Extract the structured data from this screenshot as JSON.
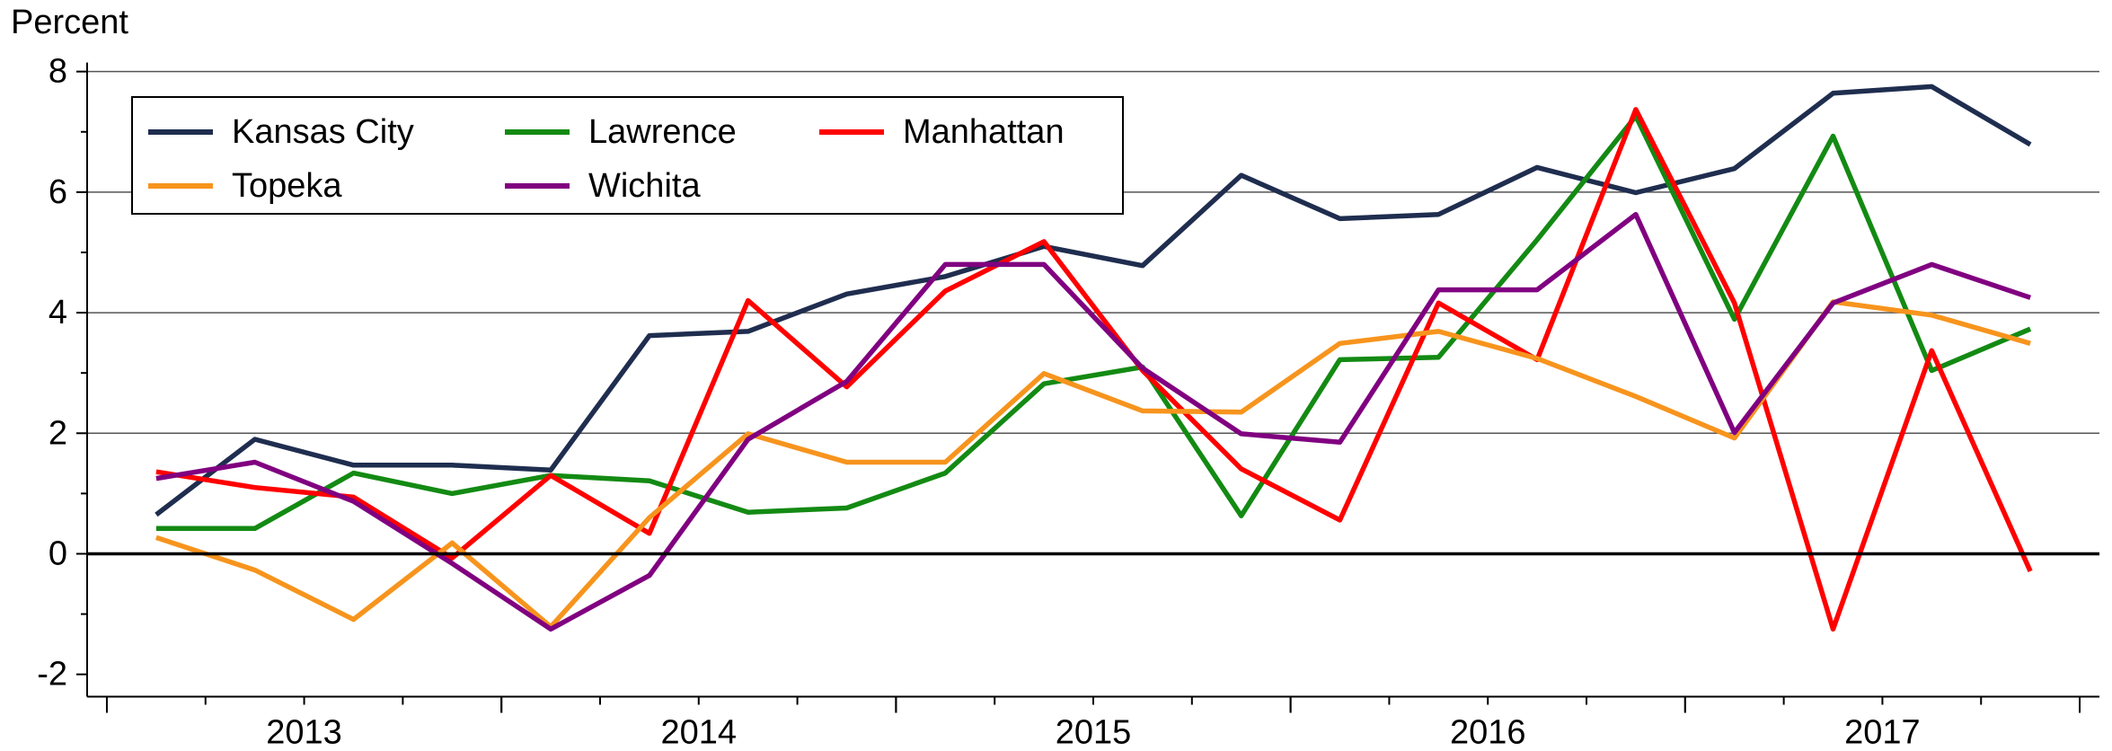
{
  "chart_data": {
    "type": "line",
    "y_label": "Percent",
    "x": [
      2013.125,
      2013.375,
      2013.625,
      2013.875,
      2014.125,
      2014.375,
      2014.625,
      2014.875,
      2015.125,
      2015.375,
      2015.625,
      2015.875,
      2016.125,
      2016.375,
      2016.625,
      2016.875,
      2017.125,
      2017.375,
      2017.625,
      2017.875
    ],
    "xlim": [
      2012.95,
      2018.05
    ],
    "xticks": [
      {
        "value": 2013.5,
        "label": "2013"
      },
      {
        "value": 2014.5,
        "label": "2014"
      },
      {
        "value": 2015.5,
        "label": "2015"
      },
      {
        "value": 2016.5,
        "label": "2016"
      },
      {
        "value": 2017.5,
        "label": "2017"
      }
    ],
    "ylim": [
      -2.37,
      8.15
    ],
    "yticks": [
      -2,
      0,
      2,
      4,
      6,
      8
    ],
    "grid": true,
    "legend": "upper left",
    "series": [
      {
        "name": "Kansas City",
        "color": "#1f2d4f",
        "values": [
          0.65,
          1.9,
          1.47,
          1.47,
          1.39,
          3.62,
          3.69,
          4.31,
          4.6,
          5.1,
          4.78,
          6.28,
          5.56,
          5.63,
          6.41,
          5.99,
          6.39,
          7.64,
          7.75,
          6.79
        ]
      },
      {
        "name": "Lawrence",
        "color": "#138a13",
        "values": [
          0.42,
          0.42,
          1.34,
          1.0,
          1.3,
          1.21,
          0.69,
          0.76,
          1.34,
          2.82,
          3.1,
          0.63,
          3.22,
          3.26,
          5.21,
          7.26,
          3.89,
          6.93,
          3.04,
          3.73
        ]
      },
      {
        "name": "Manhattan",
        "color": "#ff0000",
        "values": [
          1.36,
          1.1,
          0.94,
          -0.07,
          1.3,
          0.34,
          4.2,
          2.77,
          4.36,
          5.18,
          3.04,
          1.41,
          0.56,
          4.16,
          3.22,
          7.37,
          4.16,
          -1.25,
          3.37,
          -0.29
        ]
      },
      {
        "name": "Topeka",
        "color": "#f7941d",
        "values": [
          0.27,
          -0.27,
          -1.09,
          0.18,
          -1.21,
          0.6,
          1.99,
          1.52,
          1.52,
          2.99,
          2.37,
          2.35,
          3.49,
          3.69,
          3.24,
          2.61,
          1.92,
          4.18,
          3.96,
          3.49
        ]
      },
      {
        "name": "Wichita",
        "color": "#800080",
        "values": [
          1.25,
          1.52,
          0.87,
          -0.16,
          -1.25,
          -0.36,
          1.9,
          2.86,
          4.8,
          4.8,
          3.08,
          1.99,
          1.85,
          4.38,
          4.38,
          5.63,
          2.01,
          4.16,
          4.8,
          4.25
        ]
      }
    ]
  }
}
